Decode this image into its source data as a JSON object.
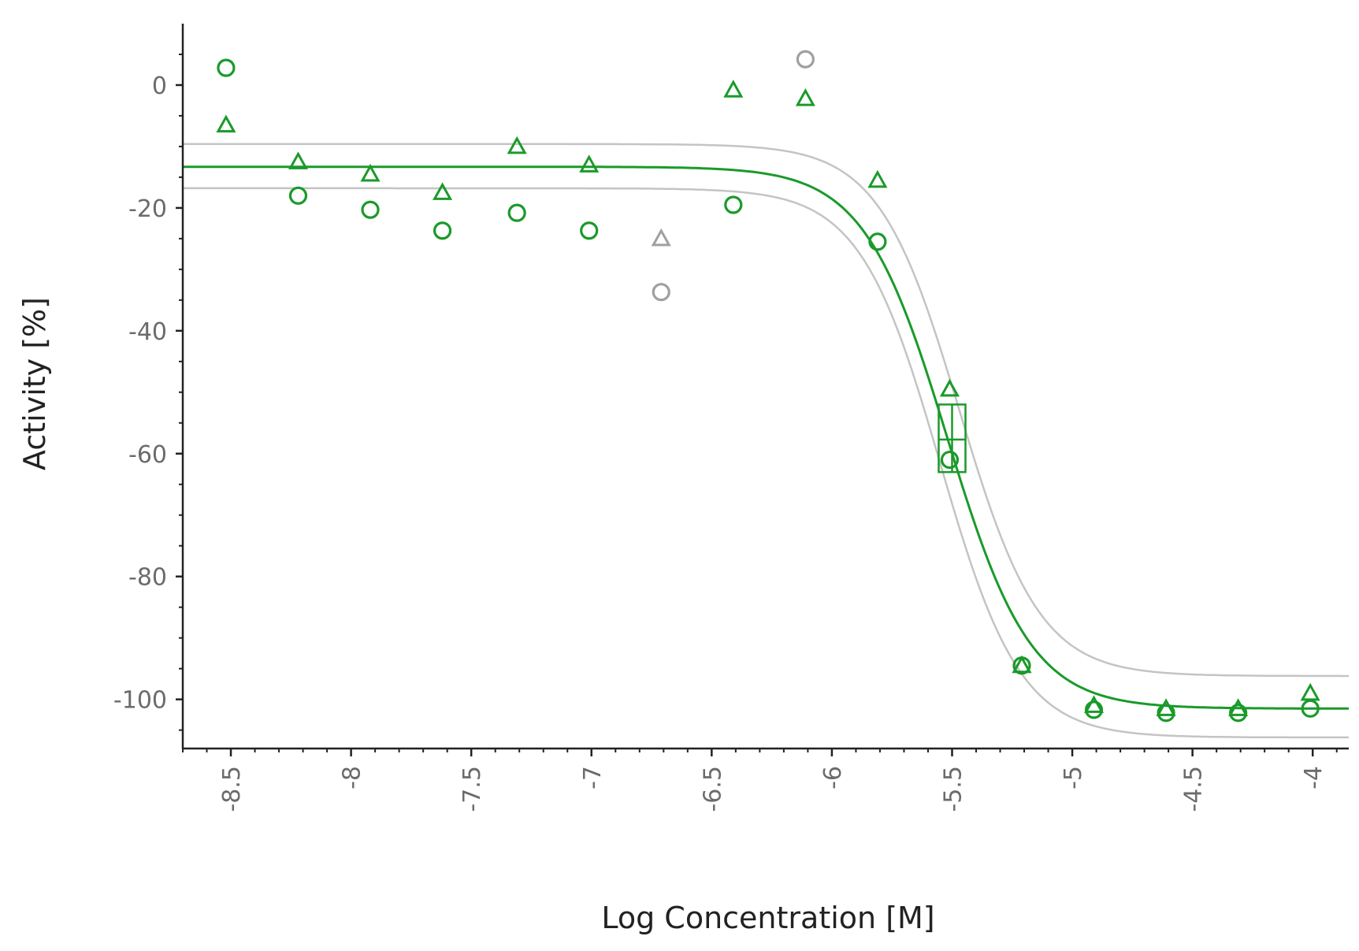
{
  "chart_data": {
    "type": "scatter",
    "title": "",
    "xlabel": "Log Concentration [M]",
    "ylabel": "Activity [%]",
    "xlim": [
      -8.7,
      -3.85
    ],
    "ylim": [
      -108,
      10
    ],
    "xticks": [
      -8.5,
      -8,
      -7.5,
      -7,
      -6.5,
      -6,
      -5.5,
      -5,
      -4.5,
      -4
    ],
    "xtick_labels": [
      "-8.5",
      "-8",
      "-7.5",
      "-7",
      "-6.5",
      "-6",
      "-5.5",
      "-5",
      "-4.5",
      "-4"
    ],
    "yticks": [
      0,
      -20,
      -40,
      -60,
      -80,
      -100
    ],
    "ytick_labels": [
      "0",
      "-20",
      "-40",
      "-60",
      "-80",
      "-100"
    ],
    "grid": false,
    "colors": {
      "fit": "#1a9a2a",
      "excluded": "#a0a0a0",
      "confidence": "#c4c4c4"
    },
    "series": [
      {
        "marker": "triangle",
        "color": "#1a9a2a",
        "points": [
          [
            -8.52,
            -6.5
          ],
          [
            -8.22,
            -12.5
          ],
          [
            -7.92,
            -14.5
          ],
          [
            -7.62,
            -17.5
          ],
          [
            -7.31,
            -10
          ],
          [
            -7.01,
            -13
          ],
          [
            -6.41,
            -0.8
          ],
          [
            -6.11,
            -2.2
          ],
          [
            -5.81,
            -15.5
          ],
          [
            -5.51,
            -49.5
          ],
          [
            -5.21,
            -94.5
          ],
          [
            -4.91,
            -101
          ],
          [
            -4.61,
            -101.5
          ],
          [
            -4.31,
            -101.5
          ],
          [
            -4.01,
            -99
          ]
        ]
      },
      {
        "marker": "circle",
        "color": "#1a9a2a",
        "points": [
          [
            -8.52,
            2.8
          ],
          [
            -8.22,
            -18
          ],
          [
            -7.92,
            -20.3
          ],
          [
            -7.62,
            -23.7
          ],
          [
            -7.31,
            -20.8
          ],
          [
            -7.01,
            -23.7
          ],
          [
            -6.41,
            -19.5
          ],
          [
            -5.81,
            -25.5
          ],
          [
            -5.51,
            -61
          ],
          [
            -5.21,
            -94.5
          ],
          [
            -4.91,
            -101.7
          ],
          [
            -4.61,
            -102.2
          ],
          [
            -4.31,
            -102.2
          ],
          [
            -4.01,
            -101.5
          ]
        ]
      },
      {
        "marker": "triangle",
        "color": "#a0a0a0",
        "excluded": true,
        "points": [
          [
            -6.71,
            -25
          ]
        ]
      },
      {
        "marker": "circle",
        "color": "#a0a0a0",
        "excluded": true,
        "points": [
          [
            -6.71,
            -33.7
          ],
          [
            -6.11,
            4.2
          ]
        ]
      }
    ],
    "fit_curve": {
      "top": -13.3,
      "bottom": -101.5,
      "log_ic50": -5.52,
      "hill_slope": 2.5
    },
    "confidence_band": {
      "upper": {
        "top": -9.6,
        "bottom": -96.2,
        "log_ic50": -5.47,
        "hill_slope": 2.6
      },
      "lower": {
        "top": -16.8,
        "bottom": -106.2,
        "log_ic50": -5.55,
        "hill_slope": 2.6
      }
    },
    "ic50_marker": {
      "log_conc": -5.5,
      "activity": -57.7,
      "low": -63,
      "high": -52
    }
  }
}
